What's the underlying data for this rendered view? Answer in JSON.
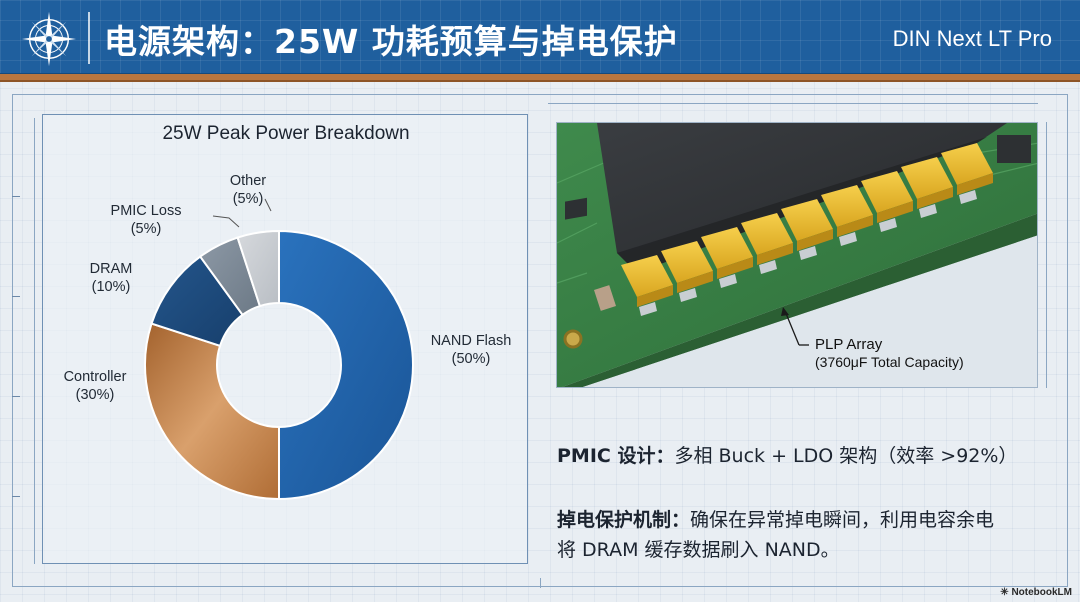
{
  "header": {
    "title": "电源架构：25W 功耗预算与掉电保护",
    "brand": "DIN Next LT Pro"
  },
  "chart_data": {
    "type": "pie",
    "style": "donut",
    "title": "25W Peak Power Breakdown",
    "categories": [
      "NAND Flash",
      "Controller",
      "DRAM",
      "PMIC Loss",
      "Other"
    ],
    "values": [
      50,
      30,
      10,
      5,
      5
    ],
    "value_labels": [
      "(50%)",
      "(30%)",
      "(10%)",
      "(5%)",
      "(5%)"
    ],
    "colors": [
      "#1f63ac",
      "#c07a40",
      "#1d4a7e",
      "#7b8896",
      "#c7cbd0"
    ]
  },
  "photo": {
    "callout_title": "PLP Array",
    "callout_sub": "(3760μF Total Capacity)"
  },
  "text": {
    "pmic_label": "PMIC 设计：",
    "pmic_body": "多相 Buck + LDO 架构（效率 >92%）",
    "plp_label": "掉电保护机制：",
    "plp_body_1": "确保在异常掉电瞬间，利用电容余电",
    "plp_body_2": "将 DRAM 缓存数据刷入 NAND。"
  },
  "watermark": "NotebookLM"
}
